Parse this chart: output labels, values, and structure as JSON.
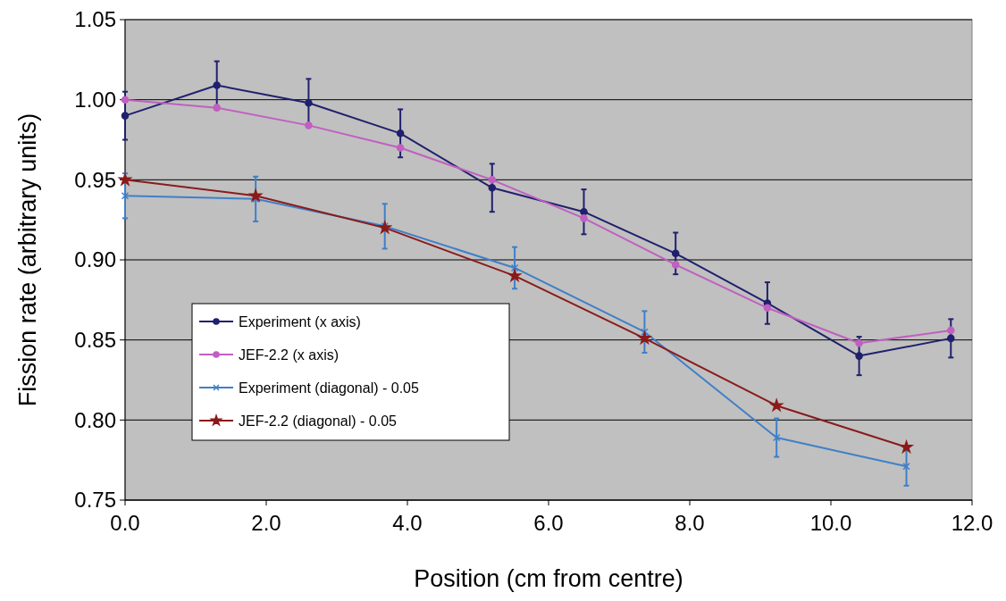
{
  "chart_data": {
    "type": "line",
    "xlabel": "Position (cm from centre)",
    "ylabel": "Fission rate (arbitrary units)",
    "xlim": [
      0,
      12
    ],
    "xticks": [
      {
        "value": 0,
        "label": "0.0"
      },
      {
        "value": 2,
        "label": "2.0"
      },
      {
        "value": 4,
        "label": "4.0"
      },
      {
        "value": 6,
        "label": "6.0"
      },
      {
        "value": 8,
        "label": "8.0"
      },
      {
        "value": 10,
        "label": "10.0"
      },
      {
        "value": 12,
        "label": "12.0"
      }
    ],
    "ylim": [
      0.75,
      1.05
    ],
    "yticks": [
      {
        "value": 0.75,
        "label": "0.75"
      },
      {
        "value": 0.8,
        "label": "0.80"
      },
      {
        "value": 0.85,
        "label": "0.85"
      },
      {
        "value": 0.9,
        "label": "0.90"
      },
      {
        "value": 0.95,
        "label": "0.95"
      },
      {
        "value": 1,
        "label": "1.00"
      },
      {
        "value": 1.05,
        "label": "1.05"
      }
    ],
    "grid": "y",
    "legend": "left",
    "series": [
      {
        "name": "Experiment (x axis)",
        "color": "#20206e",
        "marker": "circle",
        "x": [
          0,
          1.3,
          2.6,
          3.9,
          5.2,
          6.5,
          7.8,
          9.1,
          10.4,
          11.7
        ],
        "values": [
          0.99,
          1.009,
          0.998,
          0.979,
          0.945,
          0.93,
          0.904,
          0.873,
          0.84,
          0.851
        ],
        "errors": [
          0.015,
          0.015,
          0.015,
          0.015,
          0.015,
          0.014,
          0.013,
          0.013,
          0.012,
          0.012
        ]
      },
      {
        "name": "JEF-2.2 (x axis)",
        "color": "#c060c0",
        "marker": "circle",
        "x": [
          0,
          1.3,
          2.6,
          3.9,
          5.2,
          6.5,
          7.8,
          9.1,
          10.4,
          11.7
        ],
        "values": [
          1.0,
          0.995,
          0.984,
          0.97,
          0.95,
          0.926,
          0.897,
          0.87,
          0.848,
          0.856
        ]
      },
      {
        "name": "Experiment (diagonal) - 0.05",
        "color": "#3f7fc8",
        "marker": "cross",
        "x": [
          0,
          1.85,
          3.68,
          5.52,
          7.36,
          9.23,
          11.07
        ],
        "values": [
          0.94,
          0.938,
          0.921,
          0.895,
          0.855,
          0.789,
          0.771
        ],
        "errors": [
          0.014,
          0.014,
          0.014,
          0.013,
          0.013,
          0.012,
          0.012
        ]
      },
      {
        "name": "JEF-2.2 (diagonal) - 0.05",
        "color": "#8b1a1a",
        "marker": "star",
        "x": [
          0,
          1.85,
          3.68,
          5.52,
          7.36,
          9.23,
          11.07
        ],
        "values": [
          0.95,
          0.94,
          0.92,
          0.89,
          0.851,
          0.809,
          0.783
        ]
      }
    ]
  }
}
